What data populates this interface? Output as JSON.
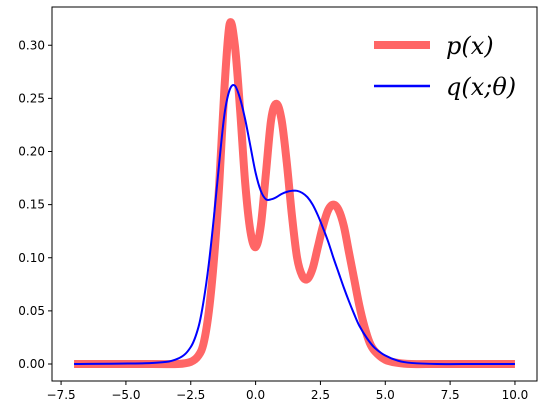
{
  "chart_data": {
    "type": "line",
    "title": "",
    "xlabel": "",
    "ylabel": "",
    "xlim": [
      -7.85,
      10.85
    ],
    "ylim": [
      -0.016,
      0.336
    ],
    "xticks": [
      -7.5,
      -5.0,
      -2.5,
      0.0,
      2.5,
      5.0,
      7.5,
      10.0
    ],
    "xtick_labels": [
      "−7.5",
      "−5.0",
      "−2.5",
      "0.0",
      "2.5",
      "5.0",
      "7.5",
      "10.0"
    ],
    "yticks": [
      0.0,
      0.05,
      0.1,
      0.15,
      0.2,
      0.25,
      0.3
    ],
    "ytick_labels": [
      "0.00",
      "0.05",
      "0.10",
      "0.15",
      "0.20",
      "0.25",
      "0.30"
    ],
    "grid": false,
    "legend_position": "top-right",
    "series": [
      {
        "name": "p(x)",
        "color": "#ff6666",
        "x": [
          -7.0,
          -4.0,
          -3.0,
          -2.5,
          -2.2,
          -2.0,
          -1.8,
          -1.6,
          -1.4,
          -1.2,
          -1.0,
          -0.8,
          -0.6,
          -0.4,
          -0.2,
          0.0,
          0.2,
          0.4,
          0.6,
          0.8,
          1.0,
          1.2,
          1.4,
          1.6,
          1.8,
          2.0,
          2.2,
          2.4,
          2.6,
          2.8,
          3.0,
          3.2,
          3.4,
          3.6,
          3.8,
          4.0,
          4.2,
          4.4,
          4.6,
          5.0,
          5.5,
          6.0,
          7.0,
          8.5,
          10.0
        ],
        "y": [
          0.0,
          0.0,
          0.0,
          0.002,
          0.008,
          0.02,
          0.05,
          0.1,
          0.17,
          0.26,
          0.32,
          0.3,
          0.24,
          0.17,
          0.125,
          0.11,
          0.13,
          0.18,
          0.23,
          0.245,
          0.23,
          0.19,
          0.14,
          0.1,
          0.083,
          0.08,
          0.09,
          0.11,
          0.13,
          0.145,
          0.15,
          0.145,
          0.13,
          0.105,
          0.08,
          0.055,
          0.035,
          0.02,
          0.012,
          0.004,
          0.001,
          0.0,
          0.0,
          0.0,
          0.0
        ]
      },
      {
        "name": "q(x;θ)",
        "color": "#0000ff",
        "x": [
          -7.0,
          -4.0,
          -3.0,
          -2.5,
          -2.2,
          -2.0,
          -1.8,
          -1.6,
          -1.4,
          -1.2,
          -1.0,
          -0.8,
          -0.6,
          -0.4,
          -0.2,
          0.0,
          0.2,
          0.4,
          0.6,
          0.8,
          1.0,
          1.2,
          1.4,
          1.6,
          1.8,
          2.0,
          2.2,
          2.4,
          2.6,
          2.8,
          3.0,
          3.2,
          3.4,
          3.6,
          3.8,
          4.0,
          4.3,
          4.6,
          5.0,
          5.5,
          6.0,
          7.0,
          8.5,
          10.0
        ],
        "y": [
          0.0,
          0.001,
          0.005,
          0.016,
          0.035,
          0.06,
          0.095,
          0.14,
          0.19,
          0.235,
          0.258,
          0.262,
          0.25,
          0.23,
          0.205,
          0.18,
          0.163,
          0.155,
          0.155,
          0.157,
          0.16,
          0.162,
          0.163,
          0.163,
          0.161,
          0.157,
          0.15,
          0.14,
          0.128,
          0.115,
          0.1,
          0.086,
          0.072,
          0.059,
          0.047,
          0.036,
          0.024,
          0.015,
          0.008,
          0.003,
          0.001,
          0.0,
          0.0,
          0.0
        ]
      }
    ]
  }
}
